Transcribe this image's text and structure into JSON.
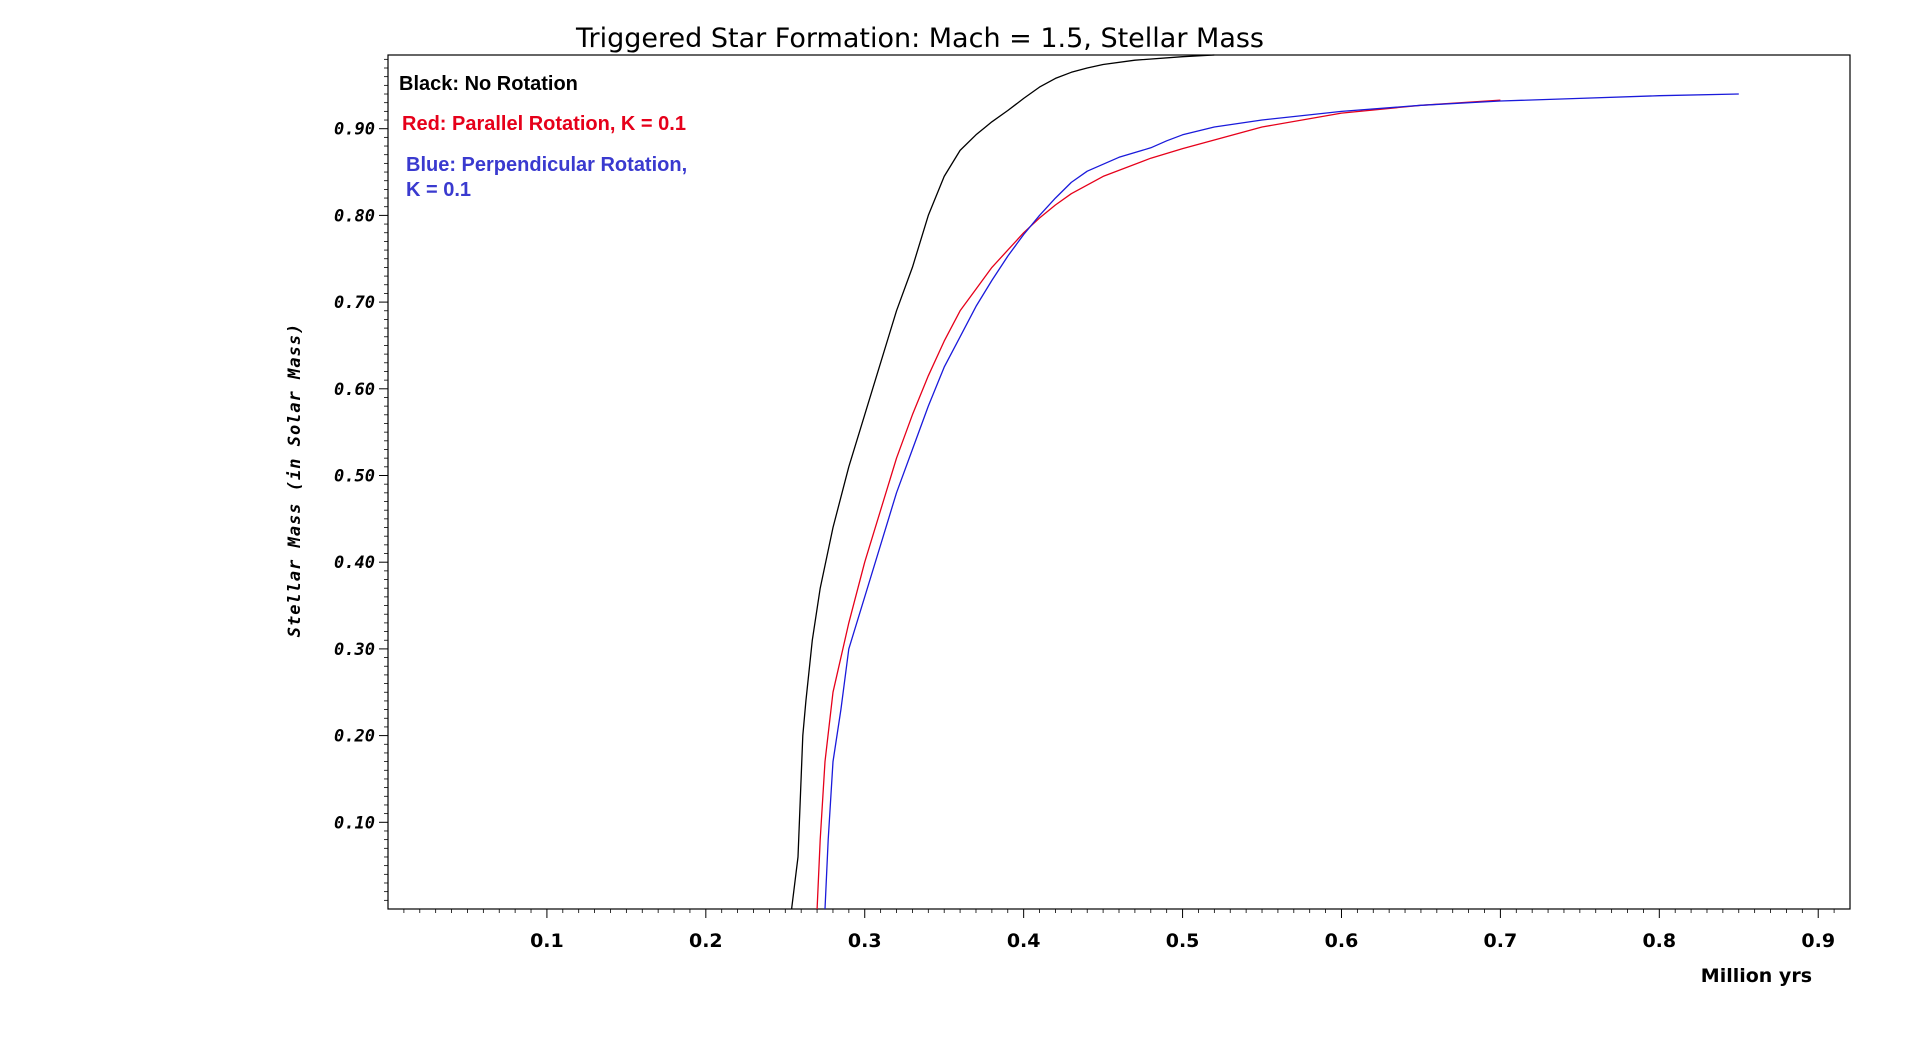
{
  "chart_data": {
    "type": "line",
    "title": "Triggered Star Formation: Mach = 1.5, Stellar Mass",
    "xlabel": "Million yrs",
    "ylabel": "Stellar Mass (in Solar Mass)",
    "xlim": [
      0,
      0.92
    ],
    "ylim": [
      0,
      0.985
    ],
    "x_ticks": [
      "0.1",
      "0.2",
      "0.3",
      "0.4",
      "0.5",
      "0.6",
      "0.7",
      "0.8",
      "0.9"
    ],
    "x_tick_values": [
      0.1,
      0.2,
      0.3,
      0.4,
      0.5,
      0.6,
      0.7,
      0.8,
      0.9
    ],
    "y_ticks": [
      "0.10",
      "0.20",
      "0.30",
      "0.40",
      "0.50",
      "0.60",
      "0.70",
      "0.80",
      "0.90"
    ],
    "y_tick_values": [
      0.1,
      0.2,
      0.3,
      0.4,
      0.5,
      0.6,
      0.7,
      0.8,
      0.9
    ],
    "legend": [
      "Black: No Rotation",
      "Red: Parallel Rotation, K = 0.1",
      "Blue: Perpendicular Rotation,",
      "K = 0.1"
    ],
    "series": [
      {
        "color": "#000000",
        "x": [
          0.254,
          0.258,
          0.261,
          0.263,
          0.267,
          0.272,
          0.28,
          0.29,
          0.3,
          0.31,
          0.32,
          0.33,
          0.34,
          0.35,
          0.36,
          0.37,
          0.38,
          0.39,
          0.4,
          0.41,
          0.42,
          0.43,
          0.44,
          0.45,
          0.47,
          0.5,
          0.52
        ],
        "y": [
          0.0,
          0.06,
          0.2,
          0.24,
          0.31,
          0.37,
          0.44,
          0.51,
          0.57,
          0.63,
          0.69,
          0.74,
          0.8,
          0.845,
          0.875,
          0.893,
          0.908,
          0.921,
          0.935,
          0.948,
          0.958,
          0.965,
          0.97,
          0.974,
          0.979,
          0.983,
          0.985
        ]
      },
      {
        "color": "#e6001a",
        "x": [
          0.27,
          0.272,
          0.275,
          0.28,
          0.29,
          0.3,
          0.31,
          0.32,
          0.33,
          0.34,
          0.35,
          0.36,
          0.37,
          0.38,
          0.39,
          0.4,
          0.41,
          0.42,
          0.43,
          0.45,
          0.48,
          0.5,
          0.55,
          0.6,
          0.65,
          0.7
        ],
        "y": [
          0.0,
          0.08,
          0.17,
          0.25,
          0.33,
          0.4,
          0.46,
          0.52,
          0.57,
          0.615,
          0.655,
          0.69,
          0.715,
          0.74,
          0.76,
          0.78,
          0.797,
          0.812,
          0.825,
          0.845,
          0.866,
          0.877,
          0.902,
          0.918,
          0.927,
          0.933
        ]
      },
      {
        "color": "#1a1adb",
        "x": [
          0.275,
          0.277,
          0.28,
          0.285,
          0.29,
          0.3,
          0.31,
          0.32,
          0.33,
          0.34,
          0.35,
          0.36,
          0.37,
          0.38,
          0.39,
          0.4,
          0.41,
          0.42,
          0.43,
          0.44,
          0.46,
          0.48,
          0.49,
          0.5,
          0.52,
          0.55,
          0.6,
          0.65,
          0.7,
          0.75,
          0.8,
          0.85
        ],
        "y": [
          0.0,
          0.08,
          0.17,
          0.23,
          0.3,
          0.36,
          0.42,
          0.48,
          0.53,
          0.58,
          0.625,
          0.66,
          0.695,
          0.725,
          0.753,
          0.778,
          0.8,
          0.82,
          0.838,
          0.851,
          0.867,
          0.878,
          0.886,
          0.893,
          0.902,
          0.91,
          0.92,
          0.927,
          0.932,
          0.935,
          0.938,
          0.94
        ]
      }
    ]
  }
}
